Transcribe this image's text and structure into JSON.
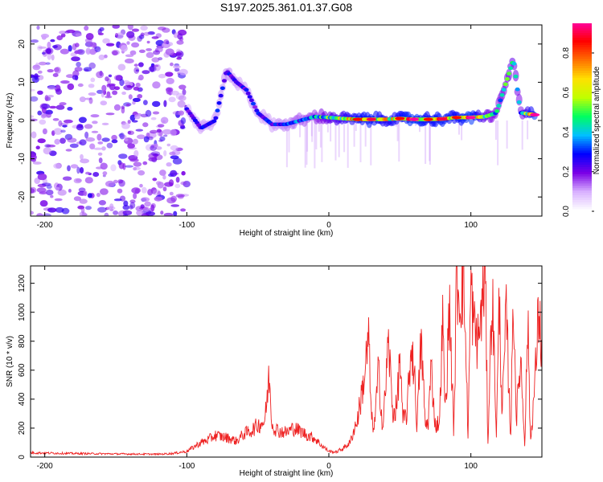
{
  "figure_title": "S197.2025.361.01.37.G08",
  "chart_data": [
    {
      "type": "heatmap",
      "title": "S197.2025.361.01.37.G08",
      "xlabel": "Height of straight line (km)",
      "ylabel": "Frequency (Hz)",
      "xlim": [
        -210,
        150
      ],
      "ylim": [
        -25,
        25
      ],
      "xticks": [
        -200,
        -100,
        0,
        100
      ],
      "yticks": [
        -20,
        -10,
        0,
        10,
        20
      ],
      "colorbar": {
        "label": "Normalized spectral amplitude",
        "range": [
          0.0,
          0.95
        ],
        "ticks": [
          0.0,
          0.2,
          0.4,
          0.6,
          0.8
        ],
        "colormap": [
          "#ffffff",
          "#d8b0ff",
          "#7a00e6",
          "#0000ff",
          "#00c0ff",
          "#00ff60",
          "#c0ff00",
          "#ffe000",
          "#ff7000",
          "#ff0000",
          "#ff00a0"
        ]
      },
      "noise_region_x": [
        -210,
        -100
      ],
      "ridge": [
        {
          "x": -100,
          "f": 3,
          "a": 0.25
        },
        {
          "x": -90,
          "f": -2,
          "a": 0.3
        },
        {
          "x": -80,
          "f": 0,
          "a": 0.3
        },
        {
          "x": -72,
          "f": 13,
          "a": 0.35
        },
        {
          "x": -65,
          "f": 10,
          "a": 0.3
        },
        {
          "x": -58,
          "f": 8,
          "a": 0.3
        },
        {
          "x": -50,
          "f": 2,
          "a": 0.3
        },
        {
          "x": -40,
          "f": -1,
          "a": 0.3
        },
        {
          "x": -30,
          "f": -1,
          "a": 0.35
        },
        {
          "x": -20,
          "f": 0,
          "a": 0.4
        },
        {
          "x": -10,
          "f": 1,
          "a": 0.45
        },
        {
          "x": 0,
          "f": 0.8,
          "a": 0.6
        },
        {
          "x": 10,
          "f": 0.5,
          "a": 0.7
        },
        {
          "x": 20,
          "f": 0.3,
          "a": 0.8
        },
        {
          "x": 30,
          "f": 0.3,
          "a": 0.85
        },
        {
          "x": 40,
          "f": 0.3,
          "a": 0.75
        },
        {
          "x": 50,
          "f": 0.5,
          "a": 0.8
        },
        {
          "x": 60,
          "f": 0.3,
          "a": 0.9
        },
        {
          "x": 70,
          "f": 0.3,
          "a": 0.8
        },
        {
          "x": 80,
          "f": 0.4,
          "a": 0.85
        },
        {
          "x": 90,
          "f": 0.8,
          "a": 0.8
        },
        {
          "x": 100,
          "f": 0.8,
          "a": 0.9
        },
        {
          "x": 110,
          "f": 1,
          "a": 0.6
        },
        {
          "x": 118,
          "f": 2,
          "a": 0.5
        },
        {
          "x": 130,
          "f": 16,
          "a": 0.6
        },
        {
          "x": 135,
          "f": 2,
          "a": 0.5
        },
        {
          "x": 145,
          "f": 1.5,
          "a": 0.9
        }
      ]
    },
    {
      "type": "line",
      "title": "",
      "xlabel": "Height of straight line (km)",
      "ylabel": "SNR (10 * v/v)",
      "xlim": [
        -210,
        150
      ],
      "ylim": [
        0,
        1320
      ],
      "xticks": [
        -200,
        -100,
        0,
        100
      ],
      "yticks": [
        0,
        200,
        400,
        600,
        800,
        1000,
        1200
      ],
      "series": [
        {
          "name": "SNR",
          "color": "#ee2222",
          "x": [
            -210,
            -180,
            -150,
            -120,
            -110,
            -100,
            -95,
            -90,
            -85,
            -80,
            -75,
            -70,
            -65,
            -60,
            -55,
            -50,
            -45,
            -42,
            -40,
            -38,
            -35,
            -30,
            -25,
            -20,
            -15,
            -10,
            -5,
            0,
            5,
            10,
            15,
            18,
            20,
            25,
            28,
            30,
            32,
            35,
            38,
            40,
            42,
            45,
            48,
            50,
            52,
            55,
            58,
            60,
            62,
            65,
            68,
            70,
            72,
            75,
            78,
            80,
            82,
            85,
            88,
            90,
            92,
            95,
            98,
            100,
            102,
            105,
            108,
            110,
            112,
            115,
            118,
            120,
            122,
            125,
            128,
            130,
            132,
            135,
            138,
            140,
            142,
            145,
            148,
            150
          ],
          "y": [
            30,
            25,
            22,
            20,
            25,
            40,
            70,
            100,
            120,
            150,
            140,
            130,
            110,
            160,
            180,
            220,
            250,
            560,
            230,
            200,
            180,
            170,
            200,
            180,
            150,
            130,
            80,
            40,
            35,
            60,
            100,
            200,
            250,
            550,
            820,
            260,
            200,
            600,
            180,
            500,
            800,
            300,
            350,
            720,
            250,
            300,
            780,
            620,
            220,
            810,
            210,
            250,
            620,
            210,
            250,
            960,
            300,
            1050,
            150,
            1270,
            1100,
            1250,
            160,
            1190,
            900,
            800,
            1050,
            1320,
            100,
            1160,
            150,
            1100,
            300,
            1000,
            120,
            1140,
            250,
            700,
            80,
            950,
            100,
            500,
            1050,
            650
          ]
        }
      ]
    }
  ]
}
